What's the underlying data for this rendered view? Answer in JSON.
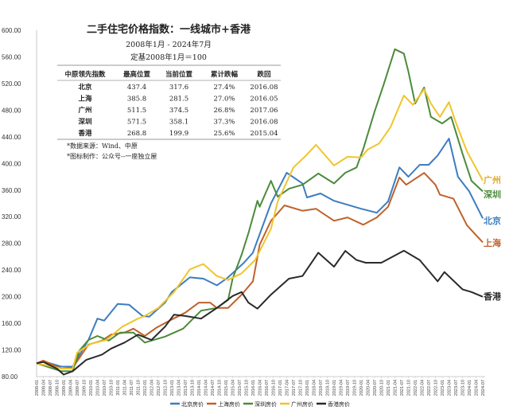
{
  "chart_data": {
    "type": "line",
    "title": "二手住宅价格指数：一线城市+香港",
    "subtitle": [
      "2008年1月 - 2024年7月",
      "定基2008年1月＝100"
    ],
    "xlabel": "",
    "ylabel": "",
    "ylim": [
      80,
      600
    ],
    "yticks": [
      "80.00",
      "120.00",
      "160.00",
      "200.00",
      "240.00",
      "280.00",
      "320.00",
      "360.00",
      "400.00",
      "440.00",
      "480.00",
      "520.00",
      "560.00",
      "600.00"
    ],
    "xrange": [
      "2008-01",
      "2024-07"
    ],
    "xtick_interval_months": 3,
    "grid": false,
    "legend_position": "bottom",
    "table": {
      "headers": [
        "中原领先指数",
        "最高位置",
        "当前位置",
        "累计跌幅",
        "跌回"
      ],
      "rows": [
        [
          "北京",
          "437.4",
          "317.6",
          "27.4%",
          "2016.08"
        ],
        [
          "上海",
          "385.8",
          "281.5",
          "27.0%",
          "2016.05"
        ],
        [
          "广州",
          "511.5",
          "374.5",
          "26.8%",
          "2017.06"
        ],
        [
          "深圳",
          "571.5",
          "358.1",
          "37.3%",
          "2016.08"
        ],
        [
          "香港",
          "268.8",
          "199.9",
          "25.6%",
          "2015.04"
        ]
      ]
    },
    "notes": [
      "*数据来源：Wind、中原",
      "*图标制作：公众号--一座独立屋"
    ],
    "series": [
      {
        "name": "北京房价",
        "end_label": "北京",
        "color": "#3d7dbf",
        "points": [
          [
            "2008-01",
            100
          ],
          [
            "2008-04",
            103
          ],
          [
            "2008-12",
            95
          ],
          [
            "2009-05",
            95
          ],
          [
            "2009-12",
            135
          ],
          [
            "2010-04",
            167
          ],
          [
            "2010-07",
            164
          ],
          [
            "2011-01",
            189
          ],
          [
            "2011-06",
            188
          ],
          [
            "2011-12",
            171
          ],
          [
            "2012-03",
            170
          ],
          [
            "2012-10",
            191
          ],
          [
            "2013-01",
            207
          ],
          [
            "2013-09",
            229
          ],
          [
            "2014-03",
            227
          ],
          [
            "2014-09",
            217
          ],
          [
            "2015-02",
            229
          ],
          [
            "2015-09",
            251
          ],
          [
            "2016-01",
            266
          ],
          [
            "2016-09",
            340
          ],
          [
            "2017-04",
            386
          ],
          [
            "2017-11",
            370
          ],
          [
            "2018-01",
            349
          ],
          [
            "2018-07",
            355
          ],
          [
            "2019-01",
            344
          ],
          [
            "2020-01",
            332
          ],
          [
            "2020-08",
            326
          ],
          [
            "2021-01",
            343
          ],
          [
            "2021-06",
            394
          ],
          [
            "2021-10",
            380
          ],
          [
            "2022-03",
            398
          ],
          [
            "2022-07",
            398
          ],
          [
            "2022-11",
            412
          ],
          [
            "2023-04",
            437.4
          ],
          [
            "2023-08",
            380
          ],
          [
            "2024-01",
            358
          ],
          [
            "2024-07",
            317.6
          ]
        ]
      },
      {
        "name": "上海房价",
        "end_label": "上海",
        "color": "#c0612b",
        "points": [
          [
            "2008-01",
            100
          ],
          [
            "2008-04",
            104
          ],
          [
            "2008-12",
            92
          ],
          [
            "2009-05",
            93
          ],
          [
            "2009-12",
            128
          ],
          [
            "2010-06",
            134
          ],
          [
            "2010-10",
            143
          ],
          [
            "2011-04",
            146
          ],
          [
            "2011-08",
            152
          ],
          [
            "2012-01",
            141
          ],
          [
            "2012-06",
            153
          ],
          [
            "2012-12",
            164
          ],
          [
            "2013-07",
            176
          ],
          [
            "2014-01",
            191
          ],
          [
            "2014-06",
            191
          ],
          [
            "2014-09",
            183
          ],
          [
            "2015-02",
            183
          ],
          [
            "2015-08",
            203
          ],
          [
            "2016-01",
            223
          ],
          [
            "2016-04",
            278
          ],
          [
            "2016-09",
            314
          ],
          [
            "2017-03",
            337
          ],
          [
            "2017-11",
            329
          ],
          [
            "2018-05",
            332
          ],
          [
            "2019-01",
            314
          ],
          [
            "2019-07",
            319
          ],
          [
            "2020-02",
            308
          ],
          [
            "2020-08",
            319
          ],
          [
            "2021-01",
            335
          ],
          [
            "2021-06",
            379
          ],
          [
            "2021-09",
            368
          ],
          [
            "2022-05",
            385.8
          ],
          [
            "2022-10",
            368
          ],
          [
            "2022-12",
            353
          ],
          [
            "2023-06",
            347
          ],
          [
            "2023-12",
            307
          ],
          [
            "2024-07",
            281.5
          ]
        ]
      },
      {
        "name": "深圳房价",
        "end_label": "深圳",
        "color": "#4b8b3b",
        "points": [
          [
            "2008-01",
            100
          ],
          [
            "2008-12",
            88
          ],
          [
            "2009-05",
            88
          ],
          [
            "2009-08",
            119
          ],
          [
            "2009-12",
            135
          ],
          [
            "2010-04",
            141
          ],
          [
            "2010-09",
            134
          ],
          [
            "2011-02",
            146
          ],
          [
            "2011-08",
            146
          ],
          [
            "2012-01",
            131
          ],
          [
            "2012-10",
            140
          ],
          [
            "2013-06",
            152
          ],
          [
            "2014-02",
            179
          ],
          [
            "2014-09",
            183
          ],
          [
            "2015-02",
            195
          ],
          [
            "2015-04",
            227
          ],
          [
            "2015-08",
            263
          ],
          [
            "2015-11",
            295
          ],
          [
            "2016-03",
            344
          ],
          [
            "2016-04",
            335
          ],
          [
            "2016-09",
            374
          ],
          [
            "2016-12",
            350
          ],
          [
            "2017-05",
            362
          ],
          [
            "2017-11",
            368
          ],
          [
            "2018-06",
            385
          ],
          [
            "2019-01",
            370
          ],
          [
            "2019-06",
            386
          ],
          [
            "2019-11",
            394
          ],
          [
            "2020-02",
            422
          ],
          [
            "2020-07",
            478
          ],
          [
            "2020-11",
            518
          ],
          [
            "2021-04",
            571.5
          ],
          [
            "2021-08",
            565
          ],
          [
            "2021-10",
            538
          ],
          [
            "2022-01",
            490
          ],
          [
            "2022-05",
            514
          ],
          [
            "2022-08",
            470
          ],
          [
            "2023-01",
            460
          ],
          [
            "2023-05",
            470
          ],
          [
            "2023-10",
            415
          ],
          [
            "2024-02",
            374
          ],
          [
            "2024-07",
            358.1
          ]
        ]
      },
      {
        "name": "广州房价",
        "end_label": "广州",
        "color": "#f0c52c",
        "label_color": "#e0a92a",
        "points": [
          [
            "2008-01",
            100
          ],
          [
            "2008-12",
            92
          ],
          [
            "2009-05",
            92
          ],
          [
            "2009-07",
            116
          ],
          [
            "2010-01",
            129
          ],
          [
            "2010-08",
            135
          ],
          [
            "2011-03",
            155
          ],
          [
            "2011-10",
            167
          ],
          [
            "2012-01",
            171
          ],
          [
            "2012-07",
            183
          ],
          [
            "2013-02",
            207
          ],
          [
            "2013-09",
            241
          ],
          [
            "2014-03",
            249
          ],
          [
            "2014-09",
            231
          ],
          [
            "2015-02",
            225
          ],
          [
            "2015-08",
            235
          ],
          [
            "2016-02",
            255
          ],
          [
            "2016-09",
            302
          ],
          [
            "2016-12",
            343
          ],
          [
            "2017-07",
            394
          ],
          [
            "2017-12",
            410
          ],
          [
            "2018-05",
            428
          ],
          [
            "2019-01",
            397
          ],
          [
            "2019-07",
            410
          ],
          [
            "2020-01",
            409
          ],
          [
            "2020-04",
            421
          ],
          [
            "2020-09",
            430
          ],
          [
            "2021-02",
            454
          ],
          [
            "2021-08",
            502
          ],
          [
            "2021-12",
            488
          ],
          [
            "2022-05",
            511.5
          ],
          [
            "2022-08",
            490
          ],
          [
            "2022-12",
            470
          ],
          [
            "2023-04",
            492
          ],
          [
            "2023-07",
            462
          ],
          [
            "2023-12",
            418
          ],
          [
            "2024-07",
            374.5
          ]
        ]
      },
      {
        "name": "香港房价",
        "end_label": "香港",
        "color": "#2a2a2a",
        "points": [
          [
            "2008-01",
            100
          ],
          [
            "2008-04",
            102
          ],
          [
            "2008-10",
            92
          ],
          [
            "2009-01",
            83
          ],
          [
            "2009-05",
            88
          ],
          [
            "2009-11",
            105
          ],
          [
            "2010-06",
            113
          ],
          [
            "2010-10",
            122
          ],
          [
            "2011-04",
            131
          ],
          [
            "2011-10",
            143
          ],
          [
            "2012-04",
            135
          ],
          [
            "2012-10",
            155
          ],
          [
            "2013-02",
            173
          ],
          [
            "2013-07",
            171
          ],
          [
            "2014-02",
            167
          ],
          [
            "2014-09",
            183
          ],
          [
            "2015-04",
            201
          ],
          [
            "2015-08",
            207
          ],
          [
            "2015-11",
            191
          ],
          [
            "2016-03",
            182
          ],
          [
            "2016-09",
            203
          ],
          [
            "2017-05",
            227
          ],
          [
            "2017-11",
            231
          ],
          [
            "2018-06",
            266
          ],
          [
            "2019-01",
            245
          ],
          [
            "2019-06",
            268.8
          ],
          [
            "2019-11",
            255
          ],
          [
            "2020-03",
            251
          ],
          [
            "2020-10",
            251
          ],
          [
            "2021-08",
            269
          ],
          [
            "2022-03",
            255
          ],
          [
            "2022-11",
            223
          ],
          [
            "2023-02",
            237
          ],
          [
            "2023-10",
            211
          ],
          [
            "2024-02",
            207
          ],
          [
            "2024-07",
            199.9
          ]
        ]
      }
    ]
  }
}
